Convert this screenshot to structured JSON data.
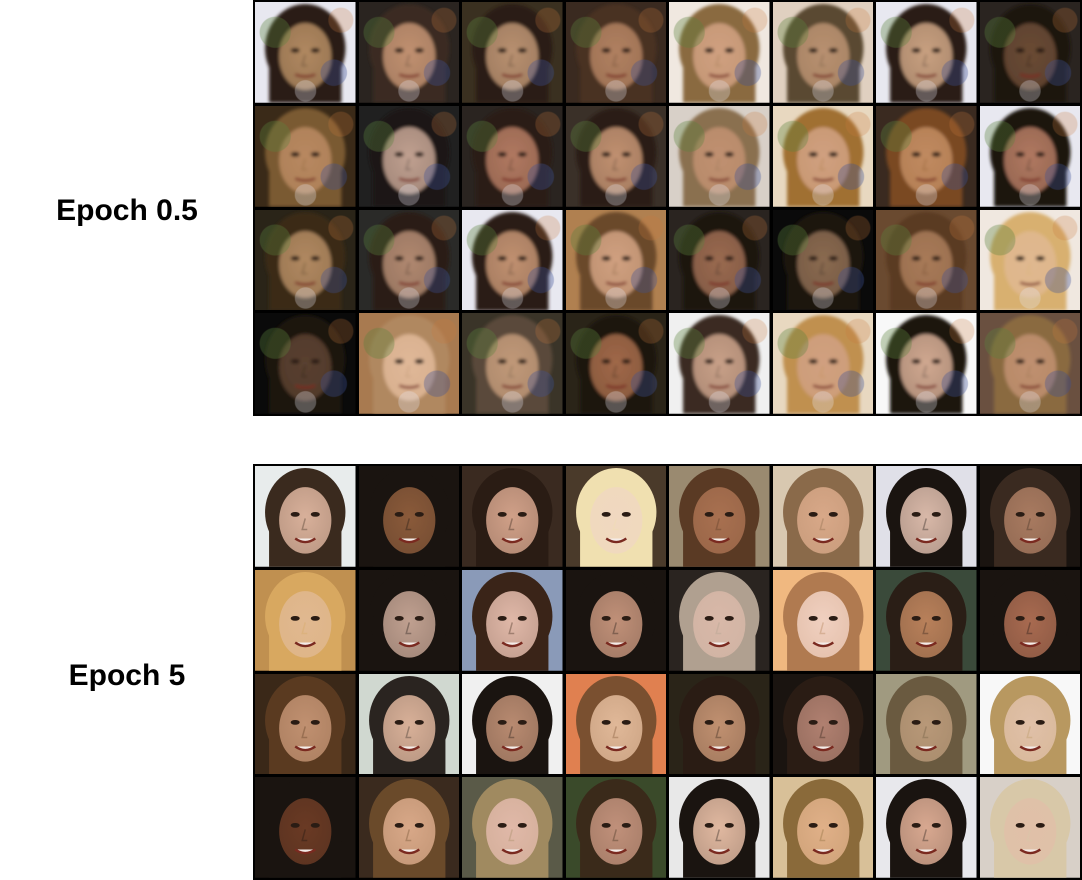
{
  "panels": [
    {
      "label": "Epoch 0.5"
    },
    {
      "label": "Epoch 5"
    }
  ]
}
